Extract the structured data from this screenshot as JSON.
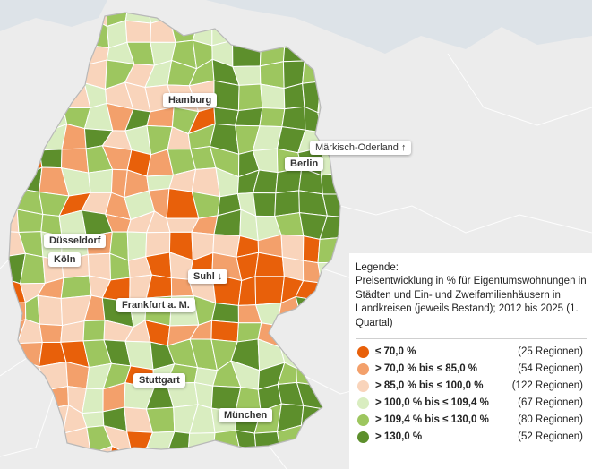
{
  "cities": [
    {
      "id": "hamburg",
      "name": "Hamburg"
    },
    {
      "id": "berlin",
      "name": "Berlin"
    },
    {
      "id": "maerkisch-oderland",
      "name": "Märkisch-Oderland ↑"
    },
    {
      "id": "duesseldorf",
      "name": "Düsseldorf"
    },
    {
      "id": "koeln",
      "name": "Köln"
    },
    {
      "id": "suhl",
      "name": "Suhl ↓"
    },
    {
      "id": "frankfurt",
      "name": "Frankfurt a. M."
    },
    {
      "id": "stuttgart",
      "name": "Stuttgart"
    },
    {
      "id": "muenchen",
      "name": "München"
    }
  ],
  "legend": {
    "title": "Legende:",
    "description": "Preisentwicklung in % für Eigentumswohnungen in Städten und Ein- und Zweifamilienhäusern in Landkreisen (jeweils Bestand); 2012 bis 2025 (1. Quartal)",
    "classes": [
      {
        "range": "≤ 70,0 %",
        "count": "(25 Regionen)",
        "color": "#e8600a"
      },
      {
        "range": "> 70,0 % bis ≤ 85,0 %",
        "count": "(54 Regionen)",
        "color": "#f3a06b"
      },
      {
        "range": "> 85,0 % bis ≤ 100,0 %",
        "count": "(122 Regionen)",
        "color": "#f9d4bb"
      },
      {
        "range": "> 100,0 % bis ≤ 109,4 %",
        "count": "(67 Regionen)",
        "color": "#d9edc0"
      },
      {
        "range": "> 109,4 % bis ≤ 130,0 %",
        "count": "(80 Regionen)",
        "color": "#9dc65f"
      },
      {
        "range": "> 130,0 %",
        "count": "(52 Regionen)",
        "color": "#5d8f2c"
      }
    ]
  }
}
